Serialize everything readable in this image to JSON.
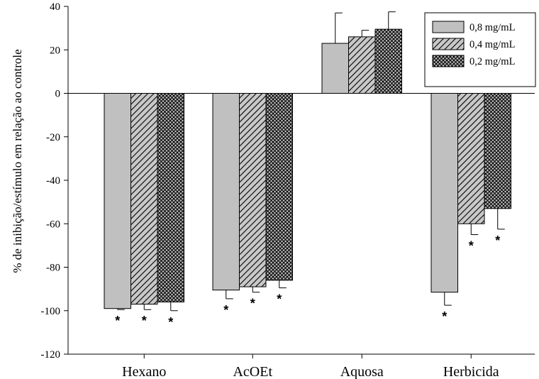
{
  "chart_data": {
    "type": "bar",
    "title": "",
    "xlabel": "",
    "ylabel": "% de inibição/estímulo em relação ao controle",
    "ylim": [
      -120,
      40
    ],
    "yticks": [
      40,
      20,
      0,
      -20,
      -40,
      -60,
      -80,
      -100,
      -120
    ],
    "grid": false,
    "legend_position": "top-right",
    "categories": [
      "Hexano",
      "AcOEt",
      "Aquosa",
      "Herbicida"
    ],
    "series": [
      {
        "name": "0,8 mg/mL",
        "pattern": "solid-gray",
        "fill": "#c0c0c0",
        "values": [
          -99,
          -90.5,
          23,
          -91.5
        ],
        "errors": [
          0.5,
          4,
          14,
          6
        ],
        "significance": [
          "*",
          "*",
          "",
          "*"
        ]
      },
      {
        "name": "0,4 mg/mL",
        "pattern": "diagonal-hatch",
        "fill": "#c0c0c0",
        "values": [
          -97,
          -89,
          26,
          -60
        ],
        "errors": [
          2.5,
          2.5,
          3,
          5
        ],
        "significance": [
          "*",
          "*",
          "",
          "*"
        ]
      },
      {
        "name": "0,2 mg/mL",
        "pattern": "crosshatch",
        "fill": "#c0c0c0",
        "values": [
          -96,
          -86,
          29.5,
          -53
        ],
        "errors": [
          4,
          3.5,
          8,
          9.5
        ],
        "significance": [
          "*",
          "*",
          "",
          "*"
        ]
      }
    ]
  }
}
